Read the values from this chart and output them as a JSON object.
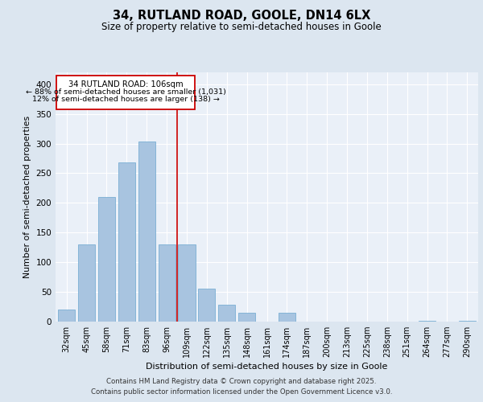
{
  "title1": "34, RUTLAND ROAD, GOOLE, DN14 6LX",
  "title2": "Size of property relative to semi-detached houses in Goole",
  "xlabel": "Distribution of semi-detached houses by size in Goole",
  "ylabel": "Number of semi-detached properties",
  "categories": [
    "32sqm",
    "45sqm",
    "58sqm",
    "71sqm",
    "83sqm",
    "96sqm",
    "109sqm",
    "122sqm",
    "135sqm",
    "148sqm",
    "161sqm",
    "174sqm",
    "187sqm",
    "200sqm",
    "213sqm",
    "225sqm",
    "238sqm",
    "251sqm",
    "264sqm",
    "277sqm",
    "290sqm"
  ],
  "values": [
    20,
    130,
    210,
    268,
    303,
    130,
    130,
    55,
    28,
    15,
    0,
    15,
    0,
    0,
    0,
    0,
    0,
    0,
    2,
    0,
    2
  ],
  "bar_color": "#a8c4e0",
  "bar_edge_color": "#7aafd4",
  "marker_label": "34 RUTLAND ROAD: 106sqm",
  "pct_smaller": "88% of semi-detached houses are smaller (1,031)",
  "pct_larger": "12% of semi-detached houses are larger (138)",
  "ylim": [
    0,
    420
  ],
  "yticks": [
    0,
    50,
    100,
    150,
    200,
    250,
    300,
    350,
    400
  ],
  "footnote1": "Contains HM Land Registry data © Crown copyright and database right 2025.",
  "footnote2": "Contains public sector information licensed under the Open Government Licence v3.0.",
  "bg_color": "#dce6f0",
  "plot_bg_color": "#eaf0f8",
  "grid_color": "#ffffff"
}
